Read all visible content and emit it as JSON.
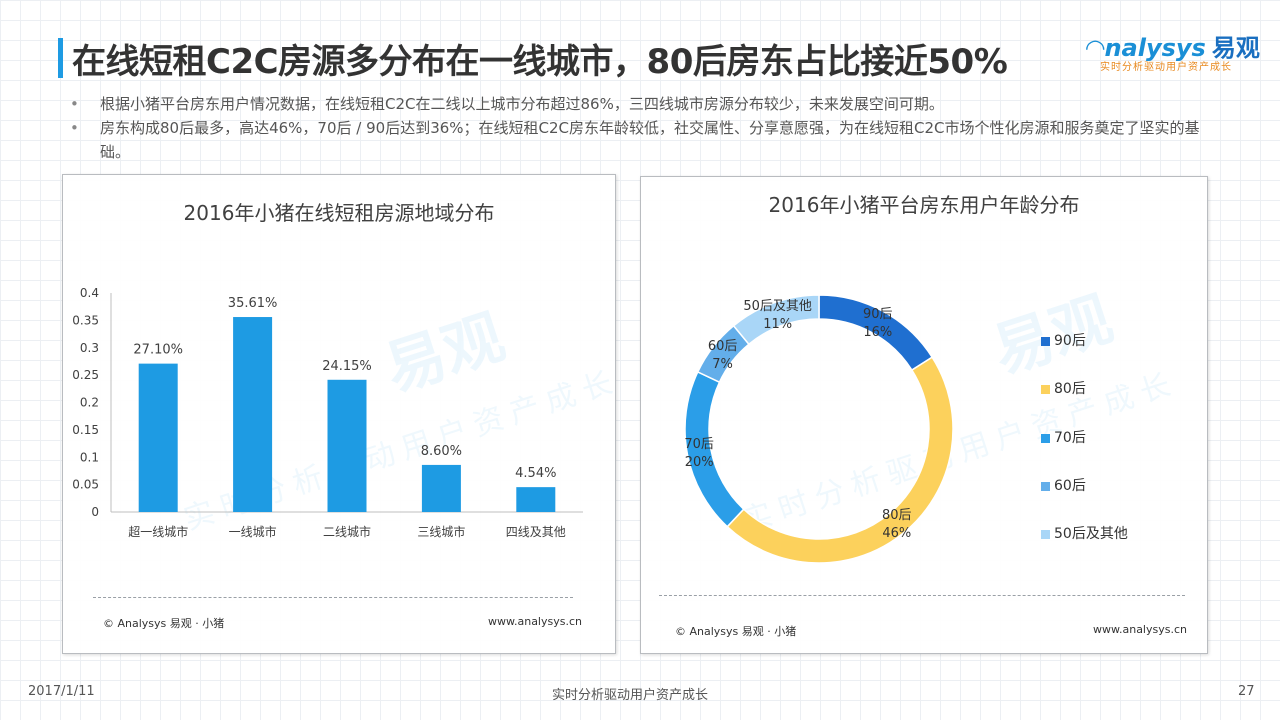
{
  "header": {
    "title": "在线短租C2C房源多分布在一线城市，80后房东占比接近50%",
    "logo_text": "nalysys",
    "logo_cn": "易观",
    "logo_tagline": "实时分析驱动用户资产成长"
  },
  "bullets": [
    "根据小猪平台房东用户情况数据，在线短租C2C在二线以上城市分布超过86%，三四线城市房源分布较少，未来发展空间可期。",
    "房东构成80后最多，高达46%，70后 / 90后达到36%；在线短租C2C房东年龄较低，社交属性、分享意愿强，为在线短租C2C市场个性化房源和服务奠定了坚实的基础。"
  ],
  "watermark": {
    "main": "易观",
    "sub": "实时分析驱动用户资产成长"
  },
  "bar_panel": {
    "source": "© Analysys 易观 · 小猪",
    "site": "www.analysys.cn"
  },
  "pie_panel": {
    "source": "© Analysys 易观 · 小猪",
    "site": "www.analysys.cn"
  },
  "footer": {
    "date": "2017/1/11",
    "tagline": "实时分析驱动用户资产成长",
    "page": "27"
  },
  "colors": {
    "accent": "#1e9be3",
    "bar": "#1e9be3"
  },
  "chart_data": [
    {
      "type": "bar",
      "title": "2016年小猪在线短租房源地域分布",
      "categories": [
        "超一线城市",
        "一线城市",
        "二线城市",
        "三线城市",
        "四线及其他"
      ],
      "values": [
        0.271,
        0.3561,
        0.2415,
        0.086,
        0.0454
      ],
      "data_labels": [
        "27.10%",
        "35.61%",
        "24.15%",
        "8.60%",
        "4.54%"
      ],
      "ylim": [
        0,
        0.4
      ],
      "yticks": [
        "0",
        "0.05",
        "0.1",
        "0.15",
        "0.2",
        "0.25",
        "0.3",
        "0.35",
        "0.4"
      ],
      "xlabel": "",
      "ylabel": "",
      "grid": false,
      "legend": false
    },
    {
      "type": "pie",
      "subtype": "donut",
      "title": "2016年小猪平台房东用户年龄分布",
      "categories": [
        "90后",
        "80后",
        "70后",
        "60后",
        "50后及其他"
      ],
      "values": [
        16,
        46,
        20,
        7,
        11
      ],
      "data_labels": [
        "16%",
        "46%",
        "20%",
        "7%",
        "11%"
      ],
      "colors": [
        "#1f6fd0",
        "#fcd15c",
        "#2b9ee8",
        "#63aeea",
        "#a9d6f7"
      ],
      "legend": "right"
    }
  ]
}
